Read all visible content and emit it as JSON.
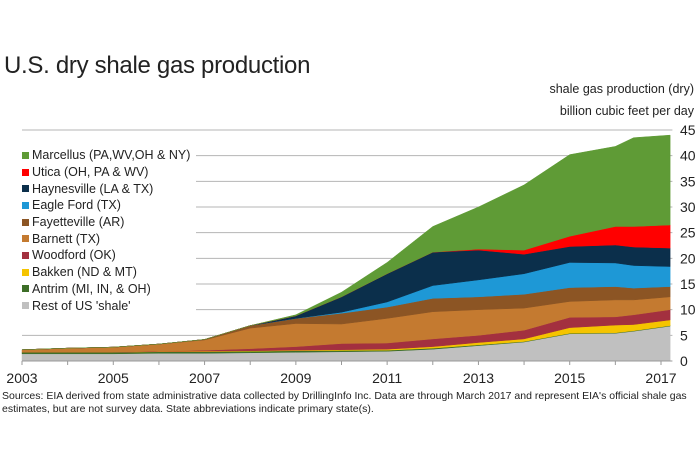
{
  "chart_data": {
    "type": "area",
    "stacked": true,
    "title": "U.S. dry shale gas production",
    "ylabel": [
      "shale gas production (dry)",
      "billion cubic feet per day"
    ],
    "xlabel": "",
    "xlim": [
      2003,
      2017.25
    ],
    "ylim": [
      0,
      45
    ],
    "x_ticks": [
      "2003",
      "2005",
      "2007",
      "2009",
      "2011",
      "2013",
      "2015",
      "2017"
    ],
    "y_ticks": [
      "0",
      "5",
      "10",
      "15",
      "20",
      "25",
      "30",
      "35",
      "40",
      "45"
    ],
    "y_axis_side": "right",
    "grid": "horizontal",
    "legend_position": "top-left",
    "x": [
      2003,
      2004,
      2005,
      2006,
      2007,
      2008,
      2009,
      2010,
      2011,
      2012,
      2013,
      2014,
      2015,
      2016,
      2016.4,
      2017.2
    ],
    "series": [
      {
        "name": "Rest of US 'shale'",
        "color": "#c0c0c0",
        "values": [
          1.4,
          1.4,
          1.4,
          1.5,
          1.5,
          1.6,
          1.7,
          1.8,
          1.9,
          2.3,
          3.0,
          3.7,
          5.3,
          5.4,
          5.8,
          6.8
        ]
      },
      {
        "name": "Antrim (MI, IN, & OH)",
        "color": "#3d6e27",
        "values": [
          0.3,
          0.3,
          0.3,
          0.3,
          0.3,
          0.3,
          0.3,
          0.25,
          0.2,
          0.2,
          0.15,
          0.1,
          0.1,
          0.1,
          0.1,
          0.1
        ]
      },
      {
        "name": "Bakken (ND & MT)",
        "color": "#f5c400",
        "values": [
          0,
          0,
          0,
          0.05,
          0.1,
          0.1,
          0.1,
          0.15,
          0.2,
          0.3,
          0.45,
          0.5,
          1.1,
          1.5,
          1.2,
          1.1
        ]
      },
      {
        "name": "Woodford (OK)",
        "color": "#a3303f",
        "values": [
          0,
          0,
          0,
          0.05,
          0.2,
          0.4,
          0.7,
          1.2,
          1.2,
          1.5,
          1.4,
          1.7,
          2.0,
          1.6,
          1.9,
          2.0
        ]
      },
      {
        "name": "Barnett (TX)",
        "color": "#c47a30",
        "values": [
          0.5,
          0.8,
          1.0,
          1.4,
          2.0,
          4.0,
          4.5,
          3.8,
          4.8,
          5.3,
          5.0,
          4.3,
          3.1,
          3.3,
          2.9,
          2.5
        ]
      },
      {
        "name": "Fayetteville (AR)",
        "color": "#8c5524",
        "values": [
          0,
          0,
          0,
          0,
          0.1,
          0.5,
          1.0,
          2.1,
          2.2,
          2.6,
          2.5,
          2.7,
          2.7,
          2.6,
          2.3,
          2.0
        ]
      },
      {
        "name": "Eagle Ford (TX)",
        "color": "#1e98d6",
        "values": [
          0,
          0,
          0,
          0,
          0,
          0,
          0,
          0.2,
          1.0,
          2.5,
          3.3,
          4.0,
          4.9,
          4.6,
          4.4,
          3.9
        ]
      },
      {
        "name": "Haynesville (LA & TX)",
        "color": "#0b2f4b",
        "values": [
          0,
          0,
          0,
          0,
          0,
          0,
          0.5,
          3.0,
          5.5,
          6.5,
          5.8,
          3.8,
          3.1,
          3.5,
          3.6,
          3.6
        ]
      },
      {
        "name": "Utica (OH, PA & WV)",
        "color": "#ff0000",
        "values": [
          0,
          0,
          0,
          0,
          0,
          0,
          0,
          0,
          0,
          0,
          0.2,
          0.8,
          2.0,
          3.6,
          4.0,
          4.5
        ]
      },
      {
        "name": "Marcellus (PA,WV,OH & NY)",
        "color": "#5f9b36",
        "values": [
          0,
          0,
          0,
          0,
          0,
          0,
          0.2,
          0.9,
          2.2,
          5.0,
          8.2,
          12.7,
          15.9,
          15.6,
          17.3,
          17.5
        ]
      }
    ],
    "source": "Sources: EIA derived from state administrative data collected by DrillingInfo Inc. Data are through March  2017 and represent EIA's official shale gas estimates, but are not survey data. State abbreviations indicate primary state(s)."
  }
}
